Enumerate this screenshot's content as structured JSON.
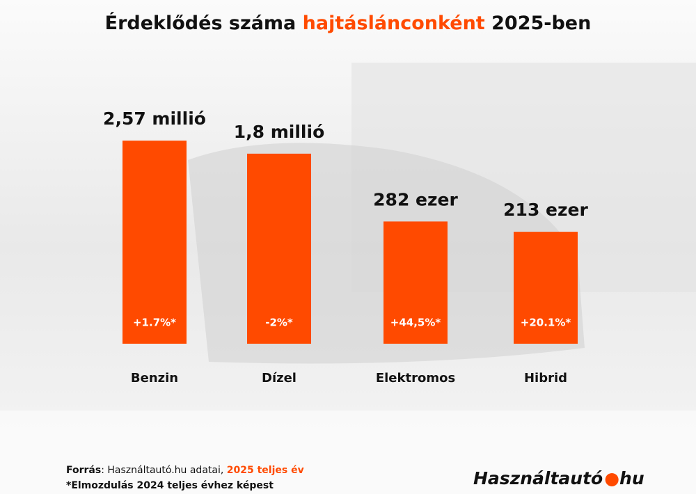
{
  "chart_data": {
    "type": "bar",
    "title_parts": [
      "Érdeklődés száma ",
      "hajtáslánconként",
      " 2025-ben"
    ],
    "categories": [
      "Benzin",
      "Dízel",
      "Elektromos",
      "Hibrid"
    ],
    "values": [
      2570000,
      1800000,
      282000,
      213000
    ],
    "value_labels": [
      "2,57 millió",
      "1,8 millió",
      "282 ezer",
      "213 ezer"
    ],
    "change_labels": [
      "+1.7%*",
      "-2%*",
      "+44,5%*",
      "+20.1%*"
    ],
    "color": "#ff4a00",
    "log_scale": true,
    "ylim": [
      10000,
      3000000
    ],
    "source_parts": [
      "Forrás",
      ": Használtautó.hu adatai, ",
      "2025 teljes év"
    ],
    "note": "*Elmozdulás 2024 teljes évhez képest",
    "logo_parts": [
      "Használtautó",
      "hu"
    ]
  }
}
